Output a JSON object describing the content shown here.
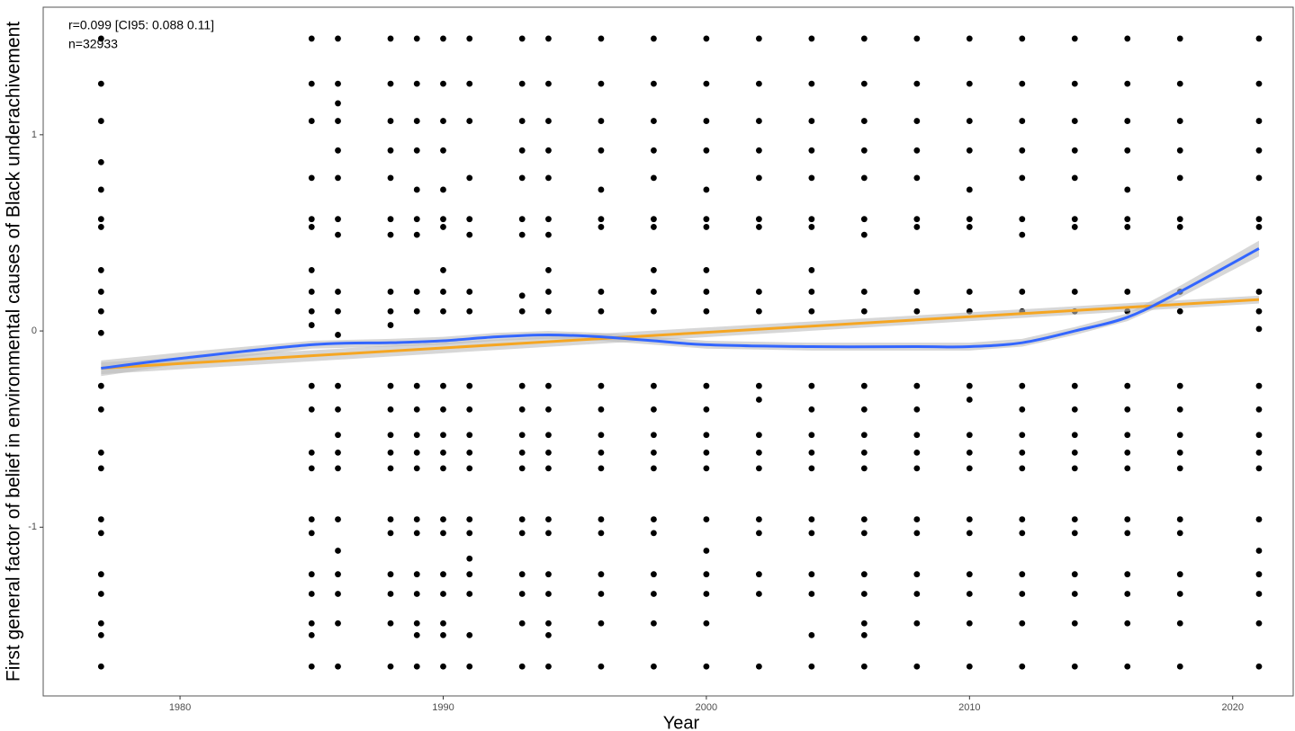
{
  "chart_data": {
    "type": "scatter",
    "x_label": "Year",
    "y_label": "First general factor of belief in environmental causes of Black underachivement",
    "annotations": [
      "r=0.099 [CI95: 0.088 0.11]",
      "n=32933"
    ],
    "xlim": [
      1974.8,
      2022.3
    ],
    "ylim": [
      -1.86,
      1.65
    ],
    "xticks": [
      1980,
      1990,
      2000,
      2010,
      2020
    ],
    "yticks": [
      -1,
      0,
      1
    ],
    "grid": false,
    "point_color": "#000000",
    "x": [
      1977,
      1985,
      1986,
      1988,
      1989,
      1990,
      1991,
      1993,
      1994,
      1996,
      1998,
      2000,
      2002,
      2004,
      2006,
      2008,
      2010,
      2012,
      2014,
      2016,
      2018,
      2021
    ],
    "values": [
      [
        1.49,
        1.26,
        1.07,
        0.86,
        0.72,
        0.57,
        0.53,
        0.31,
        0.2,
        0.1,
        -0.01,
        -0.28,
        -0.4,
        -0.62,
        -0.7,
        -0.96,
        -1.03,
        -1.24,
        -1.34,
        -1.49,
        -1.55,
        -1.71
      ],
      [
        1.49,
        1.26,
        1.07,
        0.78,
        0.57,
        0.53,
        0.31,
        0.2,
        0.1,
        0.03,
        -0.28,
        -0.4,
        -0.62,
        -0.7,
        -0.96,
        -1.03,
        -1.24,
        -1.34,
        -1.49,
        -1.55,
        -1.71
      ],
      [
        1.49,
        1.26,
        1.16,
        1.07,
        0.92,
        0.78,
        0.57,
        0.49,
        0.2,
        0.1,
        -0.02,
        -0.28,
        -0.4,
        -0.53,
        -0.62,
        -0.7,
        -0.96,
        -1.12,
        -1.24,
        -1.34,
        -1.49,
        -1.71
      ],
      [
        1.49,
        1.26,
        1.07,
        0.92,
        0.78,
        0.57,
        0.49,
        0.2,
        0.1,
        0.03,
        -0.28,
        -0.4,
        -0.53,
        -0.62,
        -0.7,
        -0.96,
        -1.03,
        -1.24,
        -1.34,
        -1.49,
        -1.71
      ],
      [
        1.49,
        1.26,
        1.07,
        0.92,
        0.72,
        0.57,
        0.49,
        0.2,
        0.1,
        -0.28,
        -0.4,
        -0.53,
        -0.62,
        -0.7,
        -0.96,
        -1.03,
        -1.24,
        -1.34,
        -1.49,
        -1.55,
        -1.71
      ],
      [
        1.49,
        1.26,
        1.07,
        0.92,
        0.72,
        0.57,
        0.53,
        0.31,
        0.2,
        0.1,
        -0.28,
        -0.4,
        -0.53,
        -0.62,
        -0.7,
        -0.96,
        -1.03,
        -1.24,
        -1.34,
        -1.49,
        -1.55,
        -1.71
      ],
      [
        1.49,
        1.26,
        1.07,
        0.78,
        0.57,
        0.49,
        0.2,
        0.1,
        -0.28,
        -0.4,
        -0.53,
        -0.62,
        -0.7,
        -0.96,
        -1.03,
        -1.16,
        -1.24,
        -1.34,
        -1.55,
        -1.71
      ],
      [
        1.49,
        1.26,
        1.07,
        0.92,
        0.78,
        0.57,
        0.49,
        0.18,
        0.1,
        -0.28,
        -0.4,
        -0.53,
        -0.62,
        -0.7,
        -0.96,
        -1.03,
        -1.24,
        -1.34,
        -1.49,
        -1.71
      ],
      [
        1.49,
        1.26,
        1.07,
        0.92,
        0.78,
        0.57,
        0.49,
        0.31,
        0.2,
        0.1,
        -0.28,
        -0.4,
        -0.53,
        -0.62,
        -0.7,
        -0.96,
        -1.03,
        -1.24,
        -1.34,
        -1.49,
        -1.55,
        -1.71
      ],
      [
        1.49,
        1.26,
        1.07,
        0.92,
        0.72,
        0.57,
        0.53,
        0.2,
        0.1,
        -0.28,
        -0.4,
        -0.53,
        -0.62,
        -0.7,
        -0.96,
        -1.03,
        -1.24,
        -1.34,
        -1.49,
        -1.71
      ],
      [
        1.49,
        1.26,
        1.07,
        0.92,
        0.78,
        0.57,
        0.53,
        0.31,
        0.2,
        0.1,
        -0.28,
        -0.4,
        -0.53,
        -0.62,
        -0.7,
        -0.96,
        -1.03,
        -1.24,
        -1.34,
        -1.49,
        -1.71
      ],
      [
        1.49,
        1.26,
        1.07,
        0.92,
        0.72,
        0.57,
        0.53,
        0.31,
        0.2,
        0.1,
        -0.28,
        -0.4,
        -0.53,
        -0.62,
        -0.7,
        -0.96,
        -1.12,
        -1.24,
        -1.34,
        -1.49,
        -1.71
      ],
      [
        1.49,
        1.26,
        1.07,
        0.92,
        0.78,
        0.57,
        0.53,
        0.2,
        0.1,
        -0.28,
        -0.35,
        -0.53,
        -0.62,
        -0.7,
        -0.96,
        -1.03,
        -1.24,
        -1.34,
        -1.71
      ],
      [
        1.49,
        1.26,
        1.07,
        0.92,
        0.78,
        0.57,
        0.53,
        0.31,
        0.2,
        0.1,
        -0.28,
        -0.4,
        -0.53,
        -0.62,
        -0.7,
        -0.96,
        -1.03,
        -1.24,
        -1.34,
        -1.55,
        -1.71
      ],
      [
        1.49,
        1.26,
        1.07,
        0.92,
        0.78,
        0.57,
        0.49,
        0.2,
        0.1,
        -0.28,
        -0.4,
        -0.53,
        -0.62,
        -0.7,
        -0.96,
        -1.03,
        -1.24,
        -1.34,
        -1.49,
        -1.55,
        -1.71
      ],
      [
        1.49,
        1.26,
        1.07,
        0.92,
        0.78,
        0.57,
        0.53,
        0.2,
        0.1,
        -0.28,
        -0.4,
        -0.53,
        -0.62,
        -0.7,
        -0.96,
        -1.03,
        -1.24,
        -1.34,
        -1.49,
        -1.71
      ],
      [
        1.49,
        1.26,
        1.07,
        0.92,
        0.72,
        0.57,
        0.53,
        0.2,
        0.1,
        -0.28,
        -0.35,
        -0.53,
        -0.62,
        -0.7,
        -0.96,
        -1.03,
        -1.24,
        -1.34,
        -1.49,
        -1.71
      ],
      [
        1.49,
        1.26,
        1.07,
        0.92,
        0.78,
        0.57,
        0.49,
        0.2,
        0.1,
        -0.28,
        -0.4,
        -0.53,
        -0.62,
        -0.7,
        -0.96,
        -1.03,
        -1.24,
        -1.34,
        -1.49,
        -1.71
      ],
      [
        1.49,
        1.26,
        1.07,
        0.92,
        0.78,
        0.57,
        0.53,
        0.2,
        0.1,
        -0.28,
        -0.4,
        -0.53,
        -0.62,
        -0.7,
        -0.96,
        -1.03,
        -1.24,
        -1.34,
        -1.49,
        -1.71
      ],
      [
        1.49,
        1.26,
        1.07,
        0.92,
        0.72,
        0.57,
        0.53,
        0.2,
        0.1,
        -0.28,
        -0.4,
        -0.53,
        -0.62,
        -0.7,
        -0.96,
        -1.03,
        -1.24,
        -1.34,
        -1.49,
        -1.71
      ],
      [
        1.49,
        1.26,
        1.07,
        0.92,
        0.78,
        0.57,
        0.53,
        0.2,
        0.1,
        -0.28,
        -0.4,
        -0.53,
        -0.62,
        -0.7,
        -0.96,
        -1.03,
        -1.24,
        -1.34,
        -1.49,
        -1.71
      ],
      [
        1.49,
        1.26,
        1.07,
        0.92,
        0.78,
        0.57,
        0.53,
        0.2,
        0.1,
        0.01,
        -0.28,
        -0.4,
        -0.53,
        -0.62,
        -0.7,
        -0.96,
        -1.12,
        -1.24,
        -1.34,
        -1.49,
        -1.71
      ]
    ],
    "lines": [
      {
        "color": "#f5a623",
        "x": [
          1977,
          2021
        ],
        "y": [
          -0.19,
          0.16
        ],
        "lower": [
          -0.22,
          0.14
        ],
        "upper": [
          -0.16,
          0.18
        ]
      },
      {
        "color": "#3366ff",
        "x": [
          1977,
          1980,
          1985,
          1988,
          1990,
          1992,
          1994,
          1996,
          1998,
          2000,
          2004,
          2008,
          2010,
          2012,
          2014,
          2016,
          2018,
          2021
        ],
        "y": [
          -0.19,
          -0.14,
          -0.07,
          -0.06,
          -0.05,
          -0.03,
          -0.02,
          -0.03,
          -0.05,
          -0.07,
          -0.08,
          -0.08,
          -0.08,
          -0.06,
          0.0,
          0.07,
          0.2,
          0.42
        ],
        "lower": [
          -0.23,
          -0.17,
          -0.09,
          -0.08,
          -0.07,
          -0.05,
          -0.04,
          -0.05,
          -0.07,
          -0.09,
          -0.1,
          -0.1,
          -0.1,
          -0.08,
          -0.02,
          0.05,
          0.17,
          0.38
        ],
        "upper": [
          -0.15,
          -0.11,
          -0.05,
          -0.04,
          -0.03,
          -0.01,
          0.0,
          -0.01,
          -0.03,
          -0.05,
          -0.06,
          -0.06,
          -0.06,
          -0.04,
          0.02,
          0.09,
          0.23,
          0.46
        ]
      }
    ],
    "band_color": "#bdbdbd"
  }
}
